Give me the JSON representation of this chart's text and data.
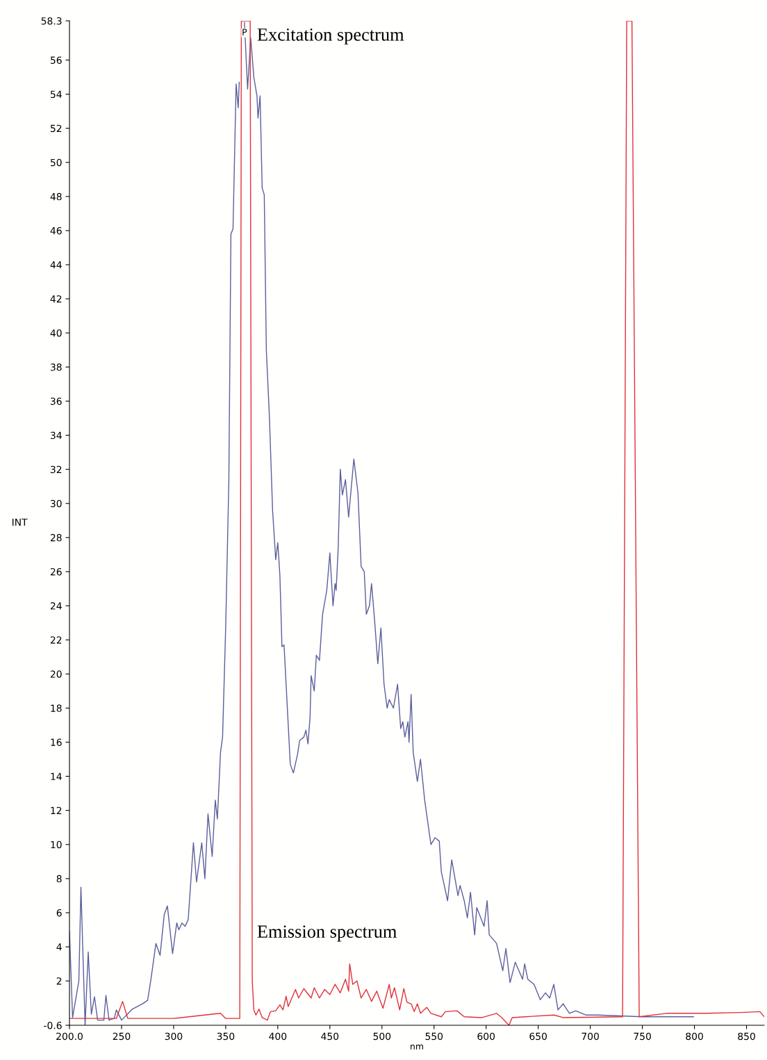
{
  "chart_data": {
    "type": "line",
    "xlabel": "nm",
    "ylabel": "INT",
    "xlim": [
      200,
      867
    ],
    "ylim": [
      -0.6,
      58.3
    ],
    "xticks": [
      {
        "value": 200,
        "label": "200.0"
      },
      250,
      300,
      350,
      400,
      450,
      500,
      550,
      600,
      650,
      700,
      750,
      800,
      850
    ],
    "yticks": [
      -0.6,
      2,
      4,
      6,
      8,
      10,
      12,
      14,
      16,
      18,
      20,
      22,
      24,
      26,
      28,
      30,
      32,
      34,
      36,
      38,
      40,
      42,
      44,
      46,
      48,
      50,
      52,
      54,
      56,
      58.3
    ],
    "grid": false,
    "legend": false,
    "marker": "none",
    "line_style": "solid",
    "series": [
      {
        "name": "Excitation spectrum",
        "color": "#5a5f9c",
        "x": [
          200,
          203,
          209,
          211,
          215,
          218,
          221,
          224,
          227,
          233,
          235,
          238,
          243,
          245,
          250,
          260,
          270,
          275,
          278,
          283,
          287,
          291,
          294,
          299,
          303,
          305,
          308,
          311,
          314,
          319,
          322,
          327,
          330,
          333,
          337,
          340,
          342,
          345,
          347,
          350,
          353,
          355,
          357,
          360,
          362,
          363,
          365,
          368,
          371,
          374,
          377,
          380,
          381,
          383,
          385,
          387,
          389,
          392,
          395,
          398,
          400,
          402,
          404,
          406,
          412,
          415,
          419,
          421,
          425,
          427,
          429,
          431,
          432,
          435,
          437,
          440,
          443,
          447,
          450,
          453,
          455,
          456,
          458,
          460,
          462,
          465,
          468,
          473,
          477,
          480,
          483,
          485,
          488,
          490,
          493,
          496,
          499,
          502,
          505,
          507,
          511,
          515,
          518,
          520,
          522,
          525,
          526,
          528,
          530,
          534,
          537,
          541,
          547,
          551,
          555,
          557,
          563,
          567,
          573,
          575,
          579,
          582,
          585,
          589,
          591,
          598,
          601,
          603,
          610,
          616,
          619,
          623,
          628,
          635,
          637,
          640,
          646,
          652,
          657,
          661,
          665,
          669,
          674,
          680,
          686,
          696,
          707,
          750,
          799
        ],
        "values": [
          4.9,
          -0.15,
          2.0,
          7.5,
          -0.6,
          3.7,
          0.05,
          1.07,
          -0.3,
          -0.3,
          1.15,
          -0.3,
          -0.2,
          0.3,
          -0.3,
          0.33,
          0.66,
          0.86,
          2.0,
          4.2,
          3.5,
          5.9,
          6.4,
          3.6,
          5.4,
          5.0,
          5.4,
          5.2,
          5.6,
          10.1,
          7.8,
          10.1,
          8.0,
          11.8,
          9.3,
          12.6,
          11.5,
          15.4,
          16.3,
          22.8,
          31.3,
          45.8,
          46.1,
          54.6,
          53.2,
          54.7,
          null,
          58.2,
          54.3,
          57.3,
          55.0,
          53.9,
          52.6,
          53.9,
          48.5,
          48.1,
          39.0,
          35.0,
          29.6,
          26.7,
          27.7,
          25.8,
          21.6,
          21.7,
          14.7,
          14.2,
          15.3,
          16.1,
          16.3,
          16.7,
          15.9,
          17.5,
          19.9,
          19.0,
          21.1,
          20.8,
          23.5,
          24.9,
          27.1,
          24.0,
          25.3,
          24.9,
          27.4,
          32.0,
          30.5,
          31.4,
          29.2,
          32.6,
          30.6,
          26.3,
          26.0,
          23.5,
          24.0,
          25.3,
          23.1,
          20.6,
          22.7,
          19.4,
          18.0,
          18.5,
          18.0,
          19.4,
          16.8,
          17.2,
          16.3,
          17.2,
          16.0,
          18.8,
          15.4,
          13.7,
          15.0,
          12.6,
          10.0,
          10.4,
          10.2,
          8.4,
          6.7,
          9.1,
          7.0,
          7.6,
          6.7,
          5.7,
          7.2,
          4.7,
          6.3,
          5.2,
          6.7,
          4.7,
          4.2,
          2.6,
          3.9,
          1.9,
          3.1,
          2.1,
          3.0,
          2.1,
          1.8,
          0.9,
          1.3,
          1.0,
          1.8,
          0.3,
          0.66,
          0.1,
          0.25,
          0.0,
          0.0,
          -0.1,
          -0.1
        ]
      },
      {
        "name": "Emission spectrum",
        "color": "#e0303a",
        "x": [
          200,
          245,
          251,
          256,
          300,
          345,
          350,
          363.5,
          365,
          373.5,
          375.5,
          377,
          379,
          382,
          385,
          390,
          393,
          398,
          402,
          405,
          408,
          410,
          417,
          420,
          425,
          432,
          435,
          440,
          445,
          450,
          455,
          460,
          465,
          468,
          469,
          472,
          476,
          480,
          485,
          490,
          495,
          501,
          507,
          509,
          512,
          517,
          521,
          524,
          528,
          531,
          534,
          537,
          543,
          547,
          557,
          561,
          572,
          579,
          596,
          610,
          615,
          622,
          625,
          665,
          674,
          731,
          735,
          740,
          747,
          773,
          811,
          844,
          863,
          867
        ],
        "values": [
          -0.2,
          -0.2,
          0.8,
          -0.2,
          -0.2,
          0.1,
          -0.2,
          -0.2,
          58.3,
          58.3,
          2.0,
          0.3,
          0.0,
          0.35,
          -0.15,
          -0.3,
          0.2,
          0.25,
          0.6,
          0.3,
          1.1,
          0.5,
          1.5,
          1.0,
          1.55,
          1.0,
          1.6,
          1.0,
          1.5,
          1.2,
          1.8,
          1.3,
          2.1,
          1.4,
          3.0,
          1.8,
          2.0,
          1.0,
          1.5,
          0.8,
          1.4,
          0.4,
          1.8,
          1.0,
          1.6,
          0.3,
          1.55,
          0.75,
          0.66,
          0.2,
          0.66,
          0.1,
          0.45,
          0.1,
          -0.1,
          0.2,
          0.25,
          -0.1,
          -0.15,
          0.1,
          -0.15,
          -0.6,
          -0.15,
          0.0,
          -0.15,
          -0.1,
          58.3,
          58.3,
          -0.1,
          0.1,
          0.1,
          0.15,
          0.2,
          -0.1
        ]
      }
    ],
    "annotations": [
      {
        "text": "P",
        "x": 368,
        "y": 57.6
      }
    ]
  }
}
